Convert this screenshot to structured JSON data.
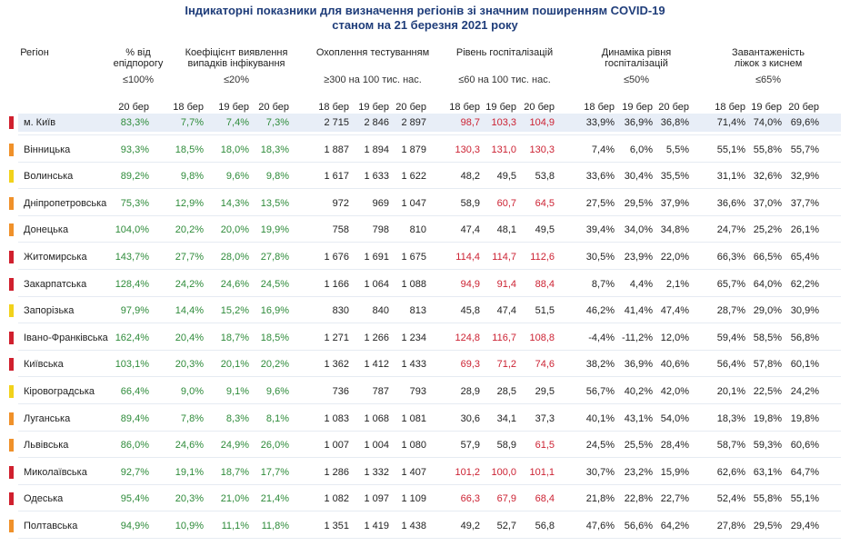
{
  "title_line1": "Індикаторні показники для визначення регіонів зі значним поширенням COVID-19",
  "title_line2": "станом на 21 березня 2021 року",
  "headers": {
    "region": "Регіон",
    "pct_line1": "% від",
    "pct_line2": "епідпорогу",
    "pct_sub": "≤100%",
    "coef_line1": "Коефіцієнт виявлення",
    "coef_line2": "випадків інфікування",
    "coef_sub": "≤20%",
    "test_line1": "Охоплення тестуванням",
    "test_sub": "≥300 на 100 тис. нас.",
    "hosp_line1": "Рівень госпіталізацій",
    "hosp_sub": "≤60 на 100 тис. нас.",
    "dyn_line1": "Динаміка рівня",
    "dyn_line2": "госпіталізацій",
    "dyn_sub": "≤50%",
    "oxy_line1": "Завантаженість",
    "oxy_line2": "ліжок з киснем",
    "oxy_sub": "≤65%"
  },
  "dates": {
    "pct": [
      "20 бер"
    ],
    "coef": [
      "18 бер",
      "19 бер",
      "20 бер"
    ],
    "test": [
      "18 бер",
      "19 бер",
      "20 бер"
    ],
    "hosp": [
      "18 бер",
      "19 бер",
      "20 бер"
    ],
    "dyn": [
      "18 бер",
      "19 бер",
      "20 бер"
    ],
    "oxy": [
      "18 бер",
      "19 бер",
      "20 бер"
    ]
  },
  "colors": {
    "red": "#d0202e",
    "orange": "#f0912a",
    "yellow": "#f2d21b",
    "row_bg": "#e8eef7",
    "green_text": "#2e8b3a",
    "red_text": "#cc2233"
  },
  "rows": [
    {
      "region": "м. Київ",
      "marker": "red",
      "bg": true,
      "pct": "83,3%",
      "coef": [
        "7,7%",
        "7,4%",
        "7,3%"
      ],
      "test": [
        "2 715",
        "2 846",
        "2 897"
      ],
      "hosp": [
        "98,7",
        "103,3",
        "104,9"
      ],
      "hosp_color": [
        "red",
        "red",
        "red"
      ],
      "dyn": [
        "33,9%",
        "36,9%",
        "36,8%"
      ],
      "oxy": [
        "71,4%",
        "74,0%",
        "69,6%"
      ]
    },
    {
      "region": "Вінницька",
      "marker": "orange",
      "bg": false,
      "pct": "93,3%",
      "coef": [
        "18,5%",
        "18,0%",
        "18,3%"
      ],
      "test": [
        "1 887",
        "1 894",
        "1 879"
      ],
      "hosp": [
        "130,3",
        "131,0",
        "130,3"
      ],
      "hosp_color": [
        "red",
        "red",
        "red"
      ],
      "dyn": [
        "7,4%",
        "6,0%",
        "5,5%"
      ],
      "oxy": [
        "55,1%",
        "55,8%",
        "55,7%"
      ]
    },
    {
      "region": "Волинська",
      "marker": "yellow",
      "bg": false,
      "pct": "89,2%",
      "coef": [
        "9,8%",
        "9,6%",
        "9,8%"
      ],
      "test": [
        "1 617",
        "1 633",
        "1 622"
      ],
      "hosp": [
        "48,2",
        "49,5",
        "53,8"
      ],
      "hosp_color": [
        "dark",
        "dark",
        "dark"
      ],
      "dyn": [
        "33,6%",
        "30,4%",
        "35,5%"
      ],
      "oxy": [
        "31,1%",
        "32,6%",
        "32,9%"
      ]
    },
    {
      "region": "Дніпропетровська",
      "marker": "orange",
      "bg": false,
      "pct": "75,3%",
      "coef": [
        "12,9%",
        "14,3%",
        "13,5%"
      ],
      "test": [
        "972",
        "969",
        "1 047"
      ],
      "hosp": [
        "58,9",
        "60,7",
        "64,5"
      ],
      "hosp_color": [
        "dark",
        "red",
        "red"
      ],
      "dyn": [
        "27,5%",
        "29,5%",
        "37,9%"
      ],
      "oxy": [
        "36,6%",
        "37,0%",
        "37,7%"
      ]
    },
    {
      "region": "Донецька",
      "marker": "orange",
      "bg": false,
      "pct": "104,0%",
      "coef": [
        "20,2%",
        "20,0%",
        "19,9%"
      ],
      "test": [
        "758",
        "798",
        "810"
      ],
      "hosp": [
        "47,4",
        "48,1",
        "49,5"
      ],
      "hosp_color": [
        "dark",
        "dark",
        "dark"
      ],
      "dyn": [
        "39,4%",
        "34,0%",
        "34,8%"
      ],
      "oxy": [
        "24,7%",
        "25,2%",
        "26,1%"
      ]
    },
    {
      "region": "Житомирська",
      "marker": "red",
      "bg": false,
      "pct": "143,7%",
      "coef": [
        "27,7%",
        "28,0%",
        "27,8%"
      ],
      "test": [
        "1 676",
        "1 691",
        "1 675"
      ],
      "hosp": [
        "114,4",
        "114,7",
        "112,6"
      ],
      "hosp_color": [
        "red",
        "red",
        "red"
      ],
      "dyn": [
        "30,5%",
        "23,9%",
        "22,0%"
      ],
      "oxy": [
        "66,3%",
        "66,5%",
        "65,4%"
      ]
    },
    {
      "region": "Закарпатська",
      "marker": "red",
      "bg": false,
      "pct": "128,4%",
      "coef": [
        "24,2%",
        "24,6%",
        "24,5%"
      ],
      "test": [
        "1 166",
        "1 064",
        "1 088"
      ],
      "hosp": [
        "94,9",
        "91,4",
        "88,4"
      ],
      "hosp_color": [
        "red",
        "red",
        "red"
      ],
      "dyn": [
        "8,7%",
        "4,4%",
        "2,1%"
      ],
      "oxy": [
        "65,7%",
        "64,0%",
        "62,2%"
      ]
    },
    {
      "region": "Запорізька",
      "marker": "yellow",
      "bg": false,
      "pct": "97,9%",
      "coef": [
        "14,4%",
        "15,2%",
        "16,9%"
      ],
      "test": [
        "830",
        "840",
        "813"
      ],
      "hosp": [
        "45,8",
        "47,4",
        "51,5"
      ],
      "hosp_color": [
        "dark",
        "dark",
        "dark"
      ],
      "dyn": [
        "46,2%",
        "41,4%",
        "47,4%"
      ],
      "oxy": [
        "28,7%",
        "29,0%",
        "30,9%"
      ]
    },
    {
      "region": "Івано-Франківська",
      "marker": "red",
      "bg": false,
      "pct": "162,4%",
      "coef": [
        "20,4%",
        "18,7%",
        "18,5%"
      ],
      "test": [
        "1 271",
        "1 266",
        "1 234"
      ],
      "hosp": [
        "124,8",
        "116,7",
        "108,8"
      ],
      "hosp_color": [
        "red",
        "red",
        "red"
      ],
      "dyn": [
        "-4,4%",
        "-11,2%",
        "12,0%"
      ],
      "oxy": [
        "59,4%",
        "58,5%",
        "56,8%"
      ]
    },
    {
      "region": "Київська",
      "marker": "red",
      "bg": false,
      "pct": "103,1%",
      "coef": [
        "20,3%",
        "20,1%",
        "20,2%"
      ],
      "test": [
        "1 362",
        "1 412",
        "1 433"
      ],
      "hosp": [
        "69,3",
        "71,2",
        "74,6"
      ],
      "hosp_color": [
        "red",
        "red",
        "red"
      ],
      "dyn": [
        "38,2%",
        "36,9%",
        "40,6%"
      ],
      "oxy": [
        "56,4%",
        "57,8%",
        "60,1%"
      ]
    },
    {
      "region": "Кіровоградська",
      "marker": "yellow",
      "bg": false,
      "pct": "66,4%",
      "coef": [
        "9,0%",
        "9,1%",
        "9,6%"
      ],
      "test": [
        "736",
        "787",
        "793"
      ],
      "hosp": [
        "28,9",
        "28,5",
        "29,5"
      ],
      "hosp_color": [
        "dark",
        "dark",
        "dark"
      ],
      "dyn": [
        "56,7%",
        "40,2%",
        "42,0%"
      ],
      "oxy": [
        "20,1%",
        "22,5%",
        "24,2%"
      ]
    },
    {
      "region": "Луганська",
      "marker": "orange",
      "bg": false,
      "pct": "89,4%",
      "coef": [
        "7,8%",
        "8,3%",
        "8,1%"
      ],
      "test": [
        "1 083",
        "1 068",
        "1 081"
      ],
      "hosp": [
        "30,6",
        "34,1",
        "37,3"
      ],
      "hosp_color": [
        "dark",
        "dark",
        "dark"
      ],
      "dyn": [
        "40,1%",
        "43,1%",
        "54,0%"
      ],
      "oxy": [
        "18,3%",
        "19,8%",
        "19,8%"
      ]
    },
    {
      "region": "Львівська",
      "marker": "orange",
      "bg": false,
      "pct": "86,0%",
      "coef": [
        "24,6%",
        "24,9%",
        "26,0%"
      ],
      "test": [
        "1 007",
        "1 004",
        "1 080"
      ],
      "hosp": [
        "57,9",
        "58,9",
        "61,5"
      ],
      "hosp_color": [
        "dark",
        "dark",
        "red"
      ],
      "dyn": [
        "24,5%",
        "25,5%",
        "28,4%"
      ],
      "oxy": [
        "58,7%",
        "59,3%",
        "60,6%"
      ]
    },
    {
      "region": "Миколаївська",
      "marker": "red",
      "bg": false,
      "pct": "92,7%",
      "coef": [
        "19,1%",
        "18,7%",
        "17,7%"
      ],
      "test": [
        "1 286",
        "1 332",
        "1 407"
      ],
      "hosp": [
        "101,2",
        "100,0",
        "101,1"
      ],
      "hosp_color": [
        "red",
        "red",
        "red"
      ],
      "dyn": [
        "30,7%",
        "23,2%",
        "15,9%"
      ],
      "oxy": [
        "62,6%",
        "63,1%",
        "64,7%"
      ]
    },
    {
      "region": "Одеська",
      "marker": "red",
      "bg": false,
      "pct": "95,4%",
      "coef": [
        "20,3%",
        "21,0%",
        "21,4%"
      ],
      "test": [
        "1 082",
        "1 097",
        "1 109"
      ],
      "hosp": [
        "66,3",
        "67,9",
        "68,4"
      ],
      "hosp_color": [
        "red",
        "red",
        "red"
      ],
      "dyn": [
        "21,8%",
        "22,8%",
        "22,7%"
      ],
      "oxy": [
        "52,4%",
        "55,8%",
        "55,1%"
      ]
    },
    {
      "region": "Полтавська",
      "marker": "orange",
      "bg": false,
      "pct": "94,9%",
      "coef": [
        "10,9%",
        "11,1%",
        "11,8%"
      ],
      "test": [
        "1 351",
        "1 419",
        "1 438"
      ],
      "hosp": [
        "49,2",
        "52,7",
        "56,8"
      ],
      "hosp_color": [
        "dark",
        "dark",
        "dark"
      ],
      "dyn": [
        "47,6%",
        "56,6%",
        "64,2%"
      ],
      "oxy": [
        "27,8%",
        "29,5%",
        "29,4%"
      ]
    }
  ]
}
